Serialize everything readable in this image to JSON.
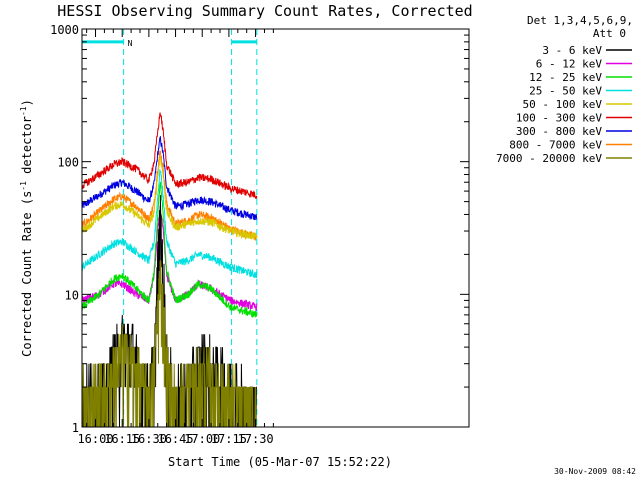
{
  "chart_data": {
    "type": "line",
    "title": "HESSI Observing Summary Count Rates, Corrected",
    "xlabel": "Start Time (05-Mar-07 15:52:22)",
    "ylabel_main": "Corrected Count Rate (s",
    "ylabel_sup1": "-1",
    "ylabel_mid": " detector",
    "ylabel_sup2": "-1",
    "ylabel_end": ")",
    "yscale": "log",
    "ylim": [
      1,
      1000
    ],
    "xlim_min": [
      952.4,
      1170
    ],
    "x_ticks": [
      {
        "min": 960,
        "label": "16:00"
      },
      {
        "min": 975,
        "label": "16:15"
      },
      {
        "min": 990,
        "label": "16:30"
      },
      {
        "min": 1005,
        "label": "16:45"
      },
      {
        "min": 1020,
        "label": "17:00"
      },
      {
        "min": 1035,
        "label": "17:15"
      },
      {
        "min": 1050,
        "label": "17:30"
      }
    ],
    "y_ticks": [
      {
        "value": 1,
        "label": "1"
      },
      {
        "value": 10,
        "label": "10"
      },
      {
        "value": 100,
        "label": "100"
      },
      {
        "value": 1000,
        "label": "1000"
      }
    ],
    "legend_header": [
      "Det 1,3,4,5,6,9,",
      "Att 0"
    ],
    "night_label": "N",
    "night_intervals": [
      [
        952.4,
        975.8
      ],
      [
        1036.5,
        1050.7
      ]
    ],
    "night_bar_level": 800,
    "series": [
      {
        "name": "3 - 6 keV",
        "color": "#000000",
        "noisy": true,
        "points": [
          [
            952.4,
            1.5
          ],
          [
            966,
            2
          ],
          [
            970,
            3
          ],
          [
            975,
            4
          ],
          [
            980,
            4
          ],
          [
            985,
            2.3
          ],
          [
            990,
            1.8
          ],
          [
            993,
            3
          ],
          [
            995,
            15
          ],
          [
            996.4,
            35
          ],
          [
            998,
            15
          ],
          [
            1000,
            3
          ],
          [
            1005,
            1.5
          ],
          [
            1012,
            2
          ],
          [
            1020,
            3
          ],
          [
            1028,
            2.5
          ],
          [
            1036,
            2
          ],
          [
            1045,
            1.5
          ],
          [
            1050.7,
            1.4
          ]
        ]
      },
      {
        "name": "6 - 12 keV",
        "color": "#e000e0",
        "noisy": false,
        "points": [
          [
            952.4,
            9
          ],
          [
            962,
            10
          ],
          [
            970,
            12
          ],
          [
            975,
            12
          ],
          [
            983,
            10
          ],
          [
            990,
            9
          ],
          [
            993,
            14
          ],
          [
            995,
            30
          ],
          [
            996.4,
            45
          ],
          [
            998,
            30
          ],
          [
            1000,
            14
          ],
          [
            1005,
            9
          ],
          [
            1012,
            10
          ],
          [
            1018,
            12
          ],
          [
            1025,
            11
          ],
          [
            1036,
            9
          ],
          [
            1050.7,
            8
          ]
        ]
      },
      {
        "name": "12 - 25 keV",
        "color": "#00e000",
        "noisy": false,
        "points": [
          [
            952.4,
            8
          ],
          [
            962,
            10
          ],
          [
            970,
            13
          ],
          [
            975,
            14
          ],
          [
            983,
            11
          ],
          [
            990,
            9
          ],
          [
            993,
            15
          ],
          [
            995,
            40
          ],
          [
            996.4,
            70
          ],
          [
            998,
            40
          ],
          [
            1000,
            15
          ],
          [
            1005,
            9
          ],
          [
            1012,
            10
          ],
          [
            1018,
            12
          ],
          [
            1025,
            11
          ],
          [
            1036,
            8
          ],
          [
            1050.7,
            7
          ]
        ]
      },
      {
        "name": "25 - 50 keV",
        "color": "#00e0e0",
        "noisy": false,
        "points": [
          [
            952.4,
            16
          ],
          [
            962,
            20
          ],
          [
            970,
            24
          ],
          [
            975,
            25
          ],
          [
            983,
            21
          ],
          [
            990,
            18
          ],
          [
            993,
            25
          ],
          [
            995,
            55
          ],
          [
            996.4,
            90
          ],
          [
            998,
            55
          ],
          [
            1000,
            25
          ],
          [
            1005,
            17
          ],
          [
            1012,
            18
          ],
          [
            1018,
            20
          ],
          [
            1025,
            19
          ],
          [
            1036,
            16
          ],
          [
            1050.7,
            14
          ]
        ]
      },
      {
        "name": "50 - 100 keV",
        "color": "#d8c800",
        "noisy": false,
        "points": [
          [
            952.4,
            30
          ],
          [
            962,
            38
          ],
          [
            970,
            46
          ],
          [
            975,
            48
          ],
          [
            983,
            40
          ],
          [
            990,
            33
          ],
          [
            993,
            42
          ],
          [
            995,
            80
          ],
          [
            996.4,
            110
          ],
          [
            998,
            80
          ],
          [
            1000,
            42
          ],
          [
            1005,
            32
          ],
          [
            1012,
            34
          ],
          [
            1018,
            36
          ],
          [
            1025,
            35
          ],
          [
            1036,
            30
          ],
          [
            1050.7,
            27
          ]
        ]
      },
      {
        "name": "100 - 300 keV",
        "color": "#e00000",
        "noisy": false,
        "points": [
          [
            952.4,
            66
          ],
          [
            962,
            80
          ],
          [
            970,
            95
          ],
          [
            975,
            100
          ],
          [
            983,
            88
          ],
          [
            990,
            72
          ],
          [
            993,
            100
          ],
          [
            995,
            170
          ],
          [
            996.4,
            240
          ],
          [
            998,
            170
          ],
          [
            1000,
            95
          ],
          [
            1005,
            68
          ],
          [
            1012,
            70
          ],
          [
            1018,
            76
          ],
          [
            1025,
            74
          ],
          [
            1036,
            63
          ],
          [
            1050.7,
            56
          ]
        ]
      },
      {
        "name": "300 - 800 keV",
        "color": "#0000e0",
        "noisy": false,
        "points": [
          [
            952.4,
            46
          ],
          [
            962,
            56
          ],
          [
            970,
            66
          ],
          [
            975,
            70
          ],
          [
            983,
            60
          ],
          [
            990,
            50
          ],
          [
            993,
            68
          ],
          [
            995,
            115
          ],
          [
            996.4,
            150
          ],
          [
            998,
            115
          ],
          [
            1000,
            65
          ],
          [
            1005,
            46
          ],
          [
            1012,
            48
          ],
          [
            1018,
            52
          ],
          [
            1025,
            50
          ],
          [
            1036,
            43
          ],
          [
            1050.7,
            38
          ]
        ]
      },
      {
        "name": "800 - 7000 keV",
        "color": "#ff7f00",
        "noisy": false,
        "points": [
          [
            952.4,
            33
          ],
          [
            962,
            42
          ],
          [
            970,
            52
          ],
          [
            975,
            55
          ],
          [
            983,
            46
          ],
          [
            990,
            37
          ],
          [
            993,
            48
          ],
          [
            995,
            90
          ],
          [
            996.4,
            120
          ],
          [
            998,
            90
          ],
          [
            1000,
            48
          ],
          [
            1005,
            34
          ],
          [
            1012,
            36
          ],
          [
            1018,
            40
          ],
          [
            1025,
            38
          ],
          [
            1036,
            31
          ],
          [
            1050.7,
            27
          ]
        ]
      },
      {
        "name": "7000 - 20000 keV",
        "color": "#808000",
        "noisy": true,
        "points": [
          [
            952.4,
            1.5
          ],
          [
            966,
            2
          ],
          [
            970,
            2.5
          ],
          [
            975,
            3.5
          ],
          [
            980,
            3
          ],
          [
            985,
            2.2
          ],
          [
            990,
            1.6
          ],
          [
            993,
            2.5
          ],
          [
            995,
            8
          ],
          [
            996.4,
            13
          ],
          [
            998,
            8
          ],
          [
            1000,
            2.5
          ],
          [
            1005,
            1.5
          ],
          [
            1012,
            1.8
          ],
          [
            1020,
            2.3
          ],
          [
            1028,
            2
          ],
          [
            1036,
            1.6
          ],
          [
            1045,
            1.4
          ],
          [
            1050.7,
            1.3
          ]
        ]
      }
    ],
    "timestamp": "30-Nov-2009 08:42",
    "grid": false,
    "legend_placement": "right"
  }
}
